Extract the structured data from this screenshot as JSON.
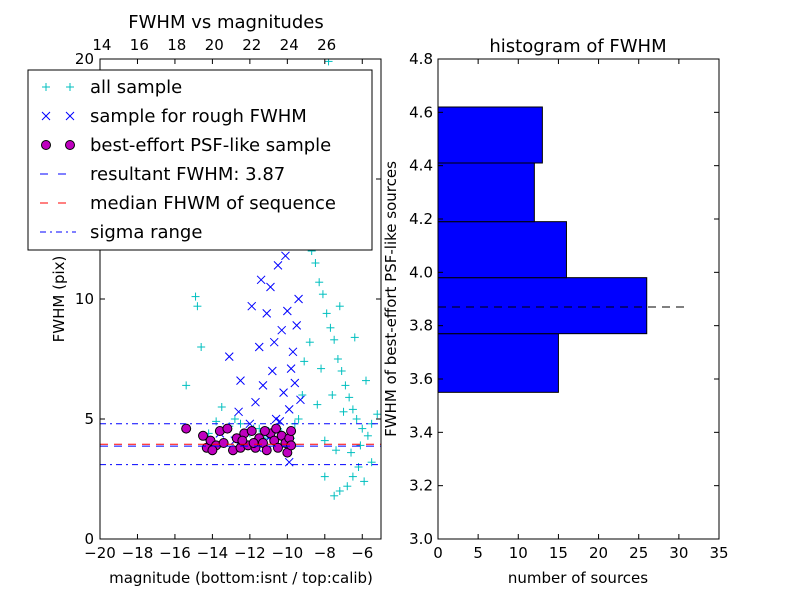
{
  "chart_data": [
    {
      "type": "scatter",
      "title": "FWHM vs magnitudes",
      "xlabel": "magnitude (bottom:isnt / top:calib)",
      "ylabel": "FWHM (pix)",
      "xlim": [
        -20,
        -5
      ],
      "ylim": [
        0,
        20
      ],
      "x_ticks": [
        -20,
        -18,
        -16,
        -14,
        -12,
        -10,
        -8,
        -6
      ],
      "x_tick_labels": [
        "−20",
        "−18",
        "−16",
        "−14",
        "−12",
        "−10",
        "−8",
        "−6"
      ],
      "y_ticks": [
        0,
        5,
        10,
        15,
        20
      ],
      "y_tick_labels": [
        "0",
        "5",
        "10",
        "15",
        "20"
      ],
      "top_axis": {
        "ticks": [
          14,
          16,
          18,
          20,
          22,
          24,
          26
        ],
        "tick_labels": [
          "14",
          "16",
          "18",
          "20",
          "22",
          "24",
          "26"
        ],
        "offset": 33.9
      },
      "legend_position": "top-left",
      "series": [
        {
          "name": "all sample",
          "marker": "+",
          "color": "#00bfbf",
          "points": [
            [
              -15.4,
              6.4
            ],
            [
              -14.9,
              10.1
            ],
            [
              -14.8,
              9.7
            ],
            [
              -14.6,
              8.0
            ],
            [
              -14.2,
              4.4
            ],
            [
              -13.8,
              4.9
            ],
            [
              -13.5,
              5.5
            ],
            [
              -13.1,
              4.7
            ],
            [
              -12.8,
              5.0
            ],
            [
              -12.5,
              4.8
            ],
            [
              -12.3,
              4.4
            ],
            [
              -12.0,
              4.4
            ],
            [
              -11.8,
              4.6
            ],
            [
              -11.5,
              4.6
            ],
            [
              -11.2,
              4.2
            ],
            [
              -11.0,
              4.5
            ],
            [
              -10.8,
              4.4
            ],
            [
              -10.5,
              4.6
            ],
            [
              -10.3,
              4.4
            ],
            [
              -10.1,
              4.1
            ],
            [
              -9.8,
              4.2
            ],
            [
              -9.6,
              4.8
            ],
            [
              -9.4,
              5.0
            ],
            [
              -9.2,
              6.0
            ],
            [
              -9.0,
              14.5
            ],
            [
              -8.9,
              13.0
            ],
            [
              -8.7,
              12.0
            ],
            [
              -8.5,
              11.5
            ],
            [
              -8.3,
              10.7
            ],
            [
              -8.1,
              10.2
            ],
            [
              -7.9,
              9.4
            ],
            [
              -7.7,
              8.8
            ],
            [
              -7.5,
              8.3
            ],
            [
              -7.3,
              7.5
            ],
            [
              -7.1,
              7.0
            ],
            [
              -6.9,
              6.4
            ],
            [
              -6.7,
              5.9
            ],
            [
              -6.5,
              5.4
            ],
            [
              -6.3,
              5.0
            ],
            [
              -6.0,
              4.6
            ],
            [
              -5.7,
              4.3
            ],
            [
              -5.5,
              4.8
            ],
            [
              -5.2,
              5.2
            ],
            [
              -7.5,
              1.8
            ],
            [
              -7.2,
              2.0
            ],
            [
              -6.8,
              2.2
            ],
            [
              -6.5,
              2.6
            ],
            [
              -6.2,
              3.0
            ],
            [
              -5.9,
              2.4
            ],
            [
              -5.5,
              3.2
            ],
            [
              -8.0,
              2.6
            ],
            [
              -8.4,
              19.3
            ],
            [
              -7.8,
              19.9
            ],
            [
              -8.6,
              17.8
            ],
            [
              -9.3,
              16.5
            ],
            [
              -9.6,
              13.2
            ],
            [
              -8.8,
              8.2
            ],
            [
              -8.2,
              7.1
            ],
            [
              -7.6,
              6.0
            ],
            [
              -7.0,
              5.3
            ],
            [
              -8.0,
              4.1
            ],
            [
              -7.4,
              3.7
            ],
            [
              -6.6,
              3.6
            ],
            [
              -6.1,
              3.9
            ],
            [
              -8.4,
              5.6
            ],
            [
              -9.1,
              7.4
            ],
            [
              -7.2,
              9.7
            ],
            [
              -6.4,
              8.4
            ],
            [
              -5.8,
              6.6
            ],
            [
              -6.9,
              12.2
            ]
          ]
        },
        {
          "name": "sample for rough FWHM",
          "marker": "x",
          "color": "#0000ff",
          "points": [
            [
              -13.1,
              7.6
            ],
            [
              -12.8,
              4.1
            ],
            [
              -12.5,
              6.6
            ],
            [
              -12.2,
              12.4
            ],
            [
              -11.9,
              9.7
            ],
            [
              -11.7,
              5.7
            ],
            [
              -11.5,
              8.0
            ],
            [
              -11.3,
              6.4
            ],
            [
              -11.1,
              9.4
            ],
            [
              -10.9,
              10.5
            ],
            [
              -10.8,
              7.0
            ],
            [
              -10.6,
              5.0
            ],
            [
              -10.5,
              11.4
            ],
            [
              -10.3,
              8.7
            ],
            [
              -10.2,
              6.1
            ],
            [
              -10.0,
              9.5
            ],
            [
              -9.9,
              5.4
            ],
            [
              -9.7,
              7.8
            ],
            [
              -9.6,
              6.5
            ],
            [
              -9.4,
              10.0
            ],
            [
              -9.3,
              5.8
            ],
            [
              -12.0,
              4.8
            ],
            [
              -11.6,
              3.8
            ],
            [
              -11.0,
              4.2
            ],
            [
              -10.4,
              4.9
            ],
            [
              -9.9,
              3.2
            ],
            [
              -9.8,
              7.1
            ],
            [
              -10.7,
              8.2
            ],
            [
              -11.4,
              10.8
            ],
            [
              -12.6,
              5.3
            ],
            [
              -13.6,
              4.4
            ],
            [
              -14.2,
              4.0
            ],
            [
              -10.1,
              11.8
            ],
            [
              -9.5,
              8.9
            ]
          ]
        },
        {
          "name": "best-effort PSF-like sample",
          "marker": "o",
          "color": "#bf00bf",
          "points": [
            [
              -15.4,
              4.6
            ],
            [
              -14.5,
              4.3
            ],
            [
              -14.3,
              3.8
            ],
            [
              -14.1,
              4.1
            ],
            [
              -13.8,
              3.9
            ],
            [
              -13.6,
              4.5
            ],
            [
              -13.4,
              4.0
            ],
            [
              -13.2,
              4.6
            ],
            [
              -12.9,
              3.7
            ],
            [
              -12.7,
              4.2
            ],
            [
              -12.5,
              3.8
            ],
            [
              -12.3,
              4.4
            ],
            [
              -12.1,
              3.9
            ],
            [
              -11.9,
              4.5
            ],
            [
              -11.7,
              3.8
            ],
            [
              -11.5,
              4.2
            ],
            [
              -11.3,
              4.0
            ],
            [
              -11.1,
              3.7
            ],
            [
              -10.9,
              4.4
            ],
            [
              -10.7,
              4.1
            ],
            [
              -10.5,
              3.8
            ],
            [
              -10.3,
              4.3
            ],
            [
              -10.1,
              4.0
            ],
            [
              -10.0,
              3.6
            ],
            [
              -9.9,
              4.2
            ],
            [
              -9.8,
              4.5
            ],
            [
              -9.8,
              3.9
            ],
            [
              -11.8,
              4.0
            ],
            [
              -12.4,
              4.1
            ],
            [
              -14.0,
              3.7
            ],
            [
              -10.6,
              4.6
            ],
            [
              -11.2,
              4.5
            ]
          ]
        },
        {
          "name": "resultant FWHM: 3.87",
          "style": "dashed",
          "color": "#0000ff",
          "y": 3.87
        },
        {
          "name": "median FHWM of sequence",
          "style": "dashed",
          "color": "#ff0000",
          "y": 3.95
        },
        {
          "name": "sigma range",
          "style": "dashdot",
          "color": "#0000ff",
          "y": [
            3.1,
            4.8
          ]
        }
      ]
    },
    {
      "type": "bar",
      "orientation": "horizontal",
      "title": "histogram of FWHM",
      "xlabel": "number of sources",
      "ylabel": "FWHM of best-effort PSF-like sources",
      "xlim": [
        0,
        35
      ],
      "ylim": [
        3.0,
        4.8
      ],
      "x_ticks": [
        0,
        5,
        10,
        15,
        20,
        25,
        30,
        35
      ],
      "y_ticks": [
        3.0,
        3.2,
        3.4,
        3.6,
        3.8,
        4.0,
        4.2,
        4.4,
        4.6,
        4.8
      ],
      "y_tick_labels": [
        "3.0",
        "3.2",
        "3.4",
        "3.6",
        "3.8",
        "4.0",
        "4.2",
        "4.4",
        "4.6",
        "4.8"
      ],
      "bar_color": "#0000ff",
      "bins": [
        {
          "from": 3.55,
          "to": 3.77,
          "count": 15
        },
        {
          "from": 3.77,
          "to": 3.98,
          "count": 26
        },
        {
          "from": 3.98,
          "to": 4.19,
          "count": 16
        },
        {
          "from": 4.19,
          "to": 4.41,
          "count": 12
        },
        {
          "from": 4.41,
          "to": 4.62,
          "count": 13
        }
      ],
      "reference_line": {
        "y": 3.87,
        "x_end": 31.3,
        "style": "dashed",
        "color": "#000000"
      }
    }
  ]
}
